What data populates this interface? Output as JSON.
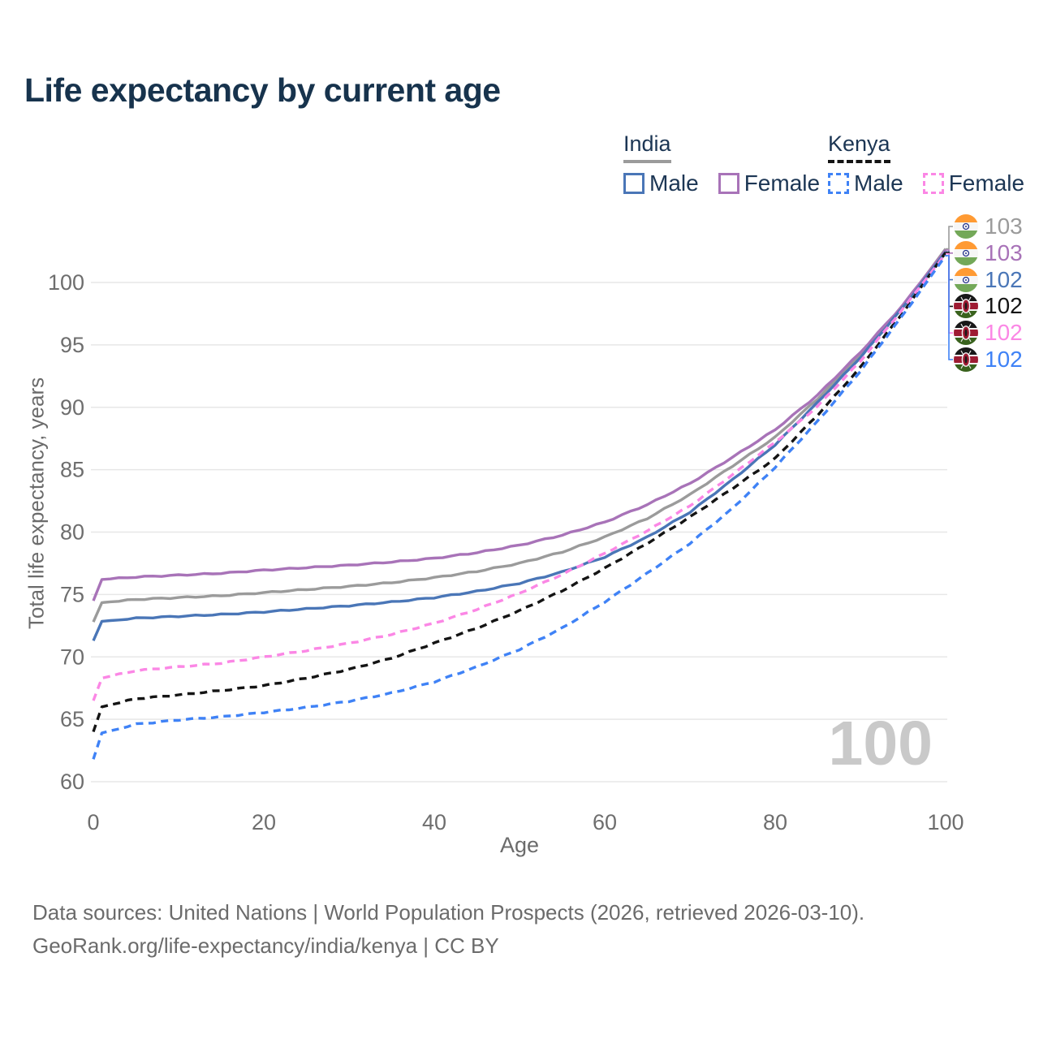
{
  "title": "Life expectancy by current age",
  "watermark": "100",
  "legend": {
    "groups": [
      {
        "country": "India",
        "style": "solid",
        "underline_color": "#9b9b9b",
        "items": [
          {
            "label": "Male",
            "color": "#4a76b7"
          },
          {
            "label": "Female",
            "color": "#a873b8"
          }
        ]
      },
      {
        "country": "Kenya",
        "style": "dashed",
        "underline_color": "#141414",
        "items": [
          {
            "label": "Male",
            "color": "#3f82f6"
          },
          {
            "label": "Female",
            "color": "#fb87e5"
          }
        ]
      }
    ]
  },
  "footer": {
    "line1": "Data sources: United Nations | World Population Prospects (2026, retrieved 2026-03-10).",
    "line2": "GeoRank.org/life-expectancy/india/kenya | CC BY"
  },
  "chart_data": {
    "type": "line",
    "title": "Life expectancy by current age",
    "xlabel": "Age",
    "ylabel": "Total life expectancy, years",
    "xlim": [
      0,
      100
    ],
    "ylim": [
      60,
      100
    ],
    "grid": "horizontal",
    "legend_position": "top-right",
    "x_ticks": [
      0,
      20,
      40,
      60,
      80,
      100
    ],
    "y_ticks": [
      60,
      65,
      70,
      75,
      80,
      85,
      90,
      95,
      100
    ],
    "x": [
      0,
      1,
      5,
      10,
      15,
      20,
      25,
      30,
      35,
      40,
      45,
      50,
      55,
      60,
      65,
      70,
      75,
      80,
      85,
      90,
      95,
      100
    ],
    "series": [
      {
        "name": "India all",
        "country": "India",
        "sex": "all",
        "flag": "india",
        "style": "solid",
        "color": "#9b9b9b",
        "end_label": "103",
        "values": [
          72.8,
          74.35,
          74.6,
          74.75,
          74.9,
          75.15,
          75.4,
          75.65,
          75.95,
          76.35,
          76.85,
          77.5,
          78.4,
          79.6,
          81.1,
          83.0,
          85.3,
          87.6,
          90.7,
          94.2,
          98.1,
          102.7
        ]
      },
      {
        "name": "India female",
        "country": "India",
        "sex": "female",
        "flag": "india",
        "style": "solid",
        "color": "#a873b8",
        "end_label": "103",
        "values": [
          74.5,
          76.2,
          76.4,
          76.55,
          76.7,
          76.95,
          77.15,
          77.35,
          77.6,
          77.9,
          78.35,
          78.95,
          79.75,
          80.8,
          82.2,
          83.9,
          86.0,
          88.2,
          91.0,
          94.4,
          98.2,
          102.6
        ]
      },
      {
        "name": "India male",
        "country": "India",
        "sex": "male",
        "flag": "india",
        "style": "solid",
        "color": "#4a76b7",
        "end_label": "102",
        "values": [
          71.3,
          72.85,
          73.1,
          73.25,
          73.4,
          73.6,
          73.85,
          74.1,
          74.4,
          74.75,
          75.25,
          75.9,
          76.8,
          78.0,
          79.6,
          81.6,
          84.2,
          87.0,
          90.4,
          94.0,
          98.0,
          102.45
        ]
      },
      {
        "name": "Kenya all",
        "country": "Kenya",
        "sex": "all",
        "flag": "kenya",
        "style": "dashed",
        "color": "#141414",
        "end_label": "102",
        "values": [
          64.0,
          66.0,
          66.65,
          66.95,
          67.3,
          67.7,
          68.3,
          69.0,
          69.9,
          71.1,
          72.3,
          73.7,
          75.3,
          77.1,
          79.1,
          81.2,
          83.5,
          85.9,
          89.4,
          93.2,
          97.6,
          102.4
        ]
      },
      {
        "name": "Kenya female",
        "country": "Kenya",
        "sex": "female",
        "flag": "kenya",
        "style": "dashed",
        "color": "#fb87e5",
        "end_label": "102",
        "values": [
          66.5,
          68.3,
          68.9,
          69.2,
          69.5,
          70.0,
          70.5,
          71.1,
          71.8,
          72.7,
          73.8,
          75.1,
          76.6,
          78.3,
          80.1,
          82.1,
          84.6,
          87.2,
          90.1,
          93.7,
          97.9,
          102.3
        ]
      },
      {
        "name": "Kenya male",
        "country": "Kenya",
        "sex": "male",
        "flag": "kenya",
        "style": "dashed",
        "color": "#3f82f6",
        "end_label": "102",
        "values": [
          61.8,
          63.9,
          64.6,
          64.95,
          65.2,
          65.55,
          65.95,
          66.45,
          67.1,
          68.0,
          69.2,
          70.6,
          72.3,
          74.4,
          76.7,
          79.1,
          81.9,
          85.2,
          88.9,
          92.9,
          97.4,
          102.15
        ]
      }
    ]
  }
}
